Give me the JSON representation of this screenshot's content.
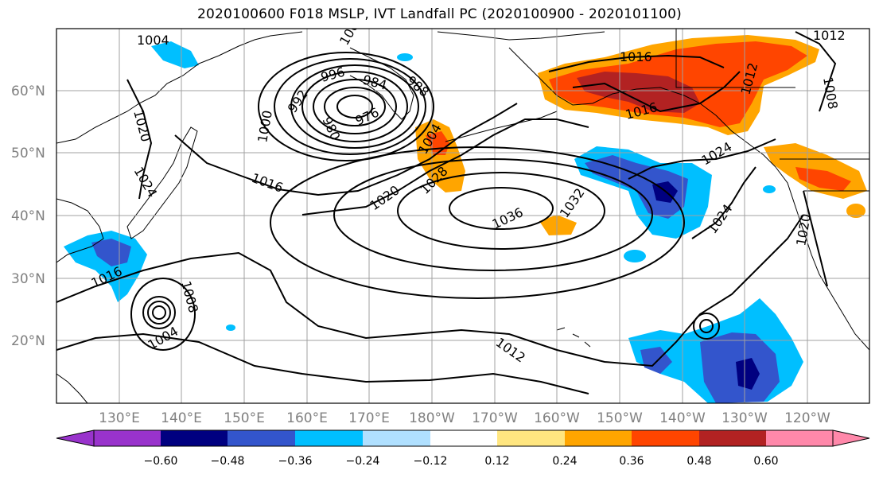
{
  "title": "2020100600 F018 MSLP, IVT Landfall PC (2020100900 - 2020101100)",
  "map": {
    "lat_labels": [
      "60°N",
      "50°N",
      "40°N",
      "30°N",
      "20°N"
    ],
    "lon_labels": [
      "130°E",
      "140°E",
      "150°E",
      "160°E",
      "170°E",
      "180°W",
      "170°W",
      "160°W",
      "150°W",
      "140°W",
      "130°W",
      "120°W"
    ],
    "contour_labels": [
      {
        "text": "1004"
      },
      {
        "text": "1000"
      },
      {
        "text": "996"
      },
      {
        "text": "992"
      },
      {
        "text": "988"
      },
      {
        "text": "984"
      },
      {
        "text": "980"
      },
      {
        "text": "976"
      },
      {
        "text": "1000"
      },
      {
        "text": "1020"
      },
      {
        "text": "1024"
      },
      {
        "text": "1016"
      },
      {
        "text": "1020"
      },
      {
        "text": "1028"
      },
      {
        "text": "1004"
      },
      {
        "text": "1036"
      },
      {
        "text": "1032"
      },
      {
        "text": "1016"
      },
      {
        "text": "1016"
      },
      {
        "text": "1012"
      },
      {
        "text": "1012"
      },
      {
        "text": "1008"
      },
      {
        "text": "1024"
      },
      {
        "text": "1024"
      },
      {
        "text": "1020"
      },
      {
        "text": "1016"
      },
      {
        "text": "1008"
      },
      {
        "text": "1004"
      },
      {
        "text": "1012"
      }
    ],
    "colors": {
      "land_edge": "#000000",
      "grid": "#a0a0a0",
      "contour": "#000000"
    }
  },
  "colorbar": {
    "tick_labels": [
      "−0.60",
      "−0.48",
      "−0.36",
      "−0.24",
      "−0.12",
      "0.12",
      "0.24",
      "0.36",
      "0.48",
      "0.60"
    ],
    "colors": [
      "#9933cc",
      "#000080",
      "#3355cc",
      "#00bfff",
      "#b0e0ff",
      "#ffffff",
      "#ffe680",
      "#ffa500",
      "#ff4500",
      "#b22222",
      "#ff88aa"
    ]
  }
}
